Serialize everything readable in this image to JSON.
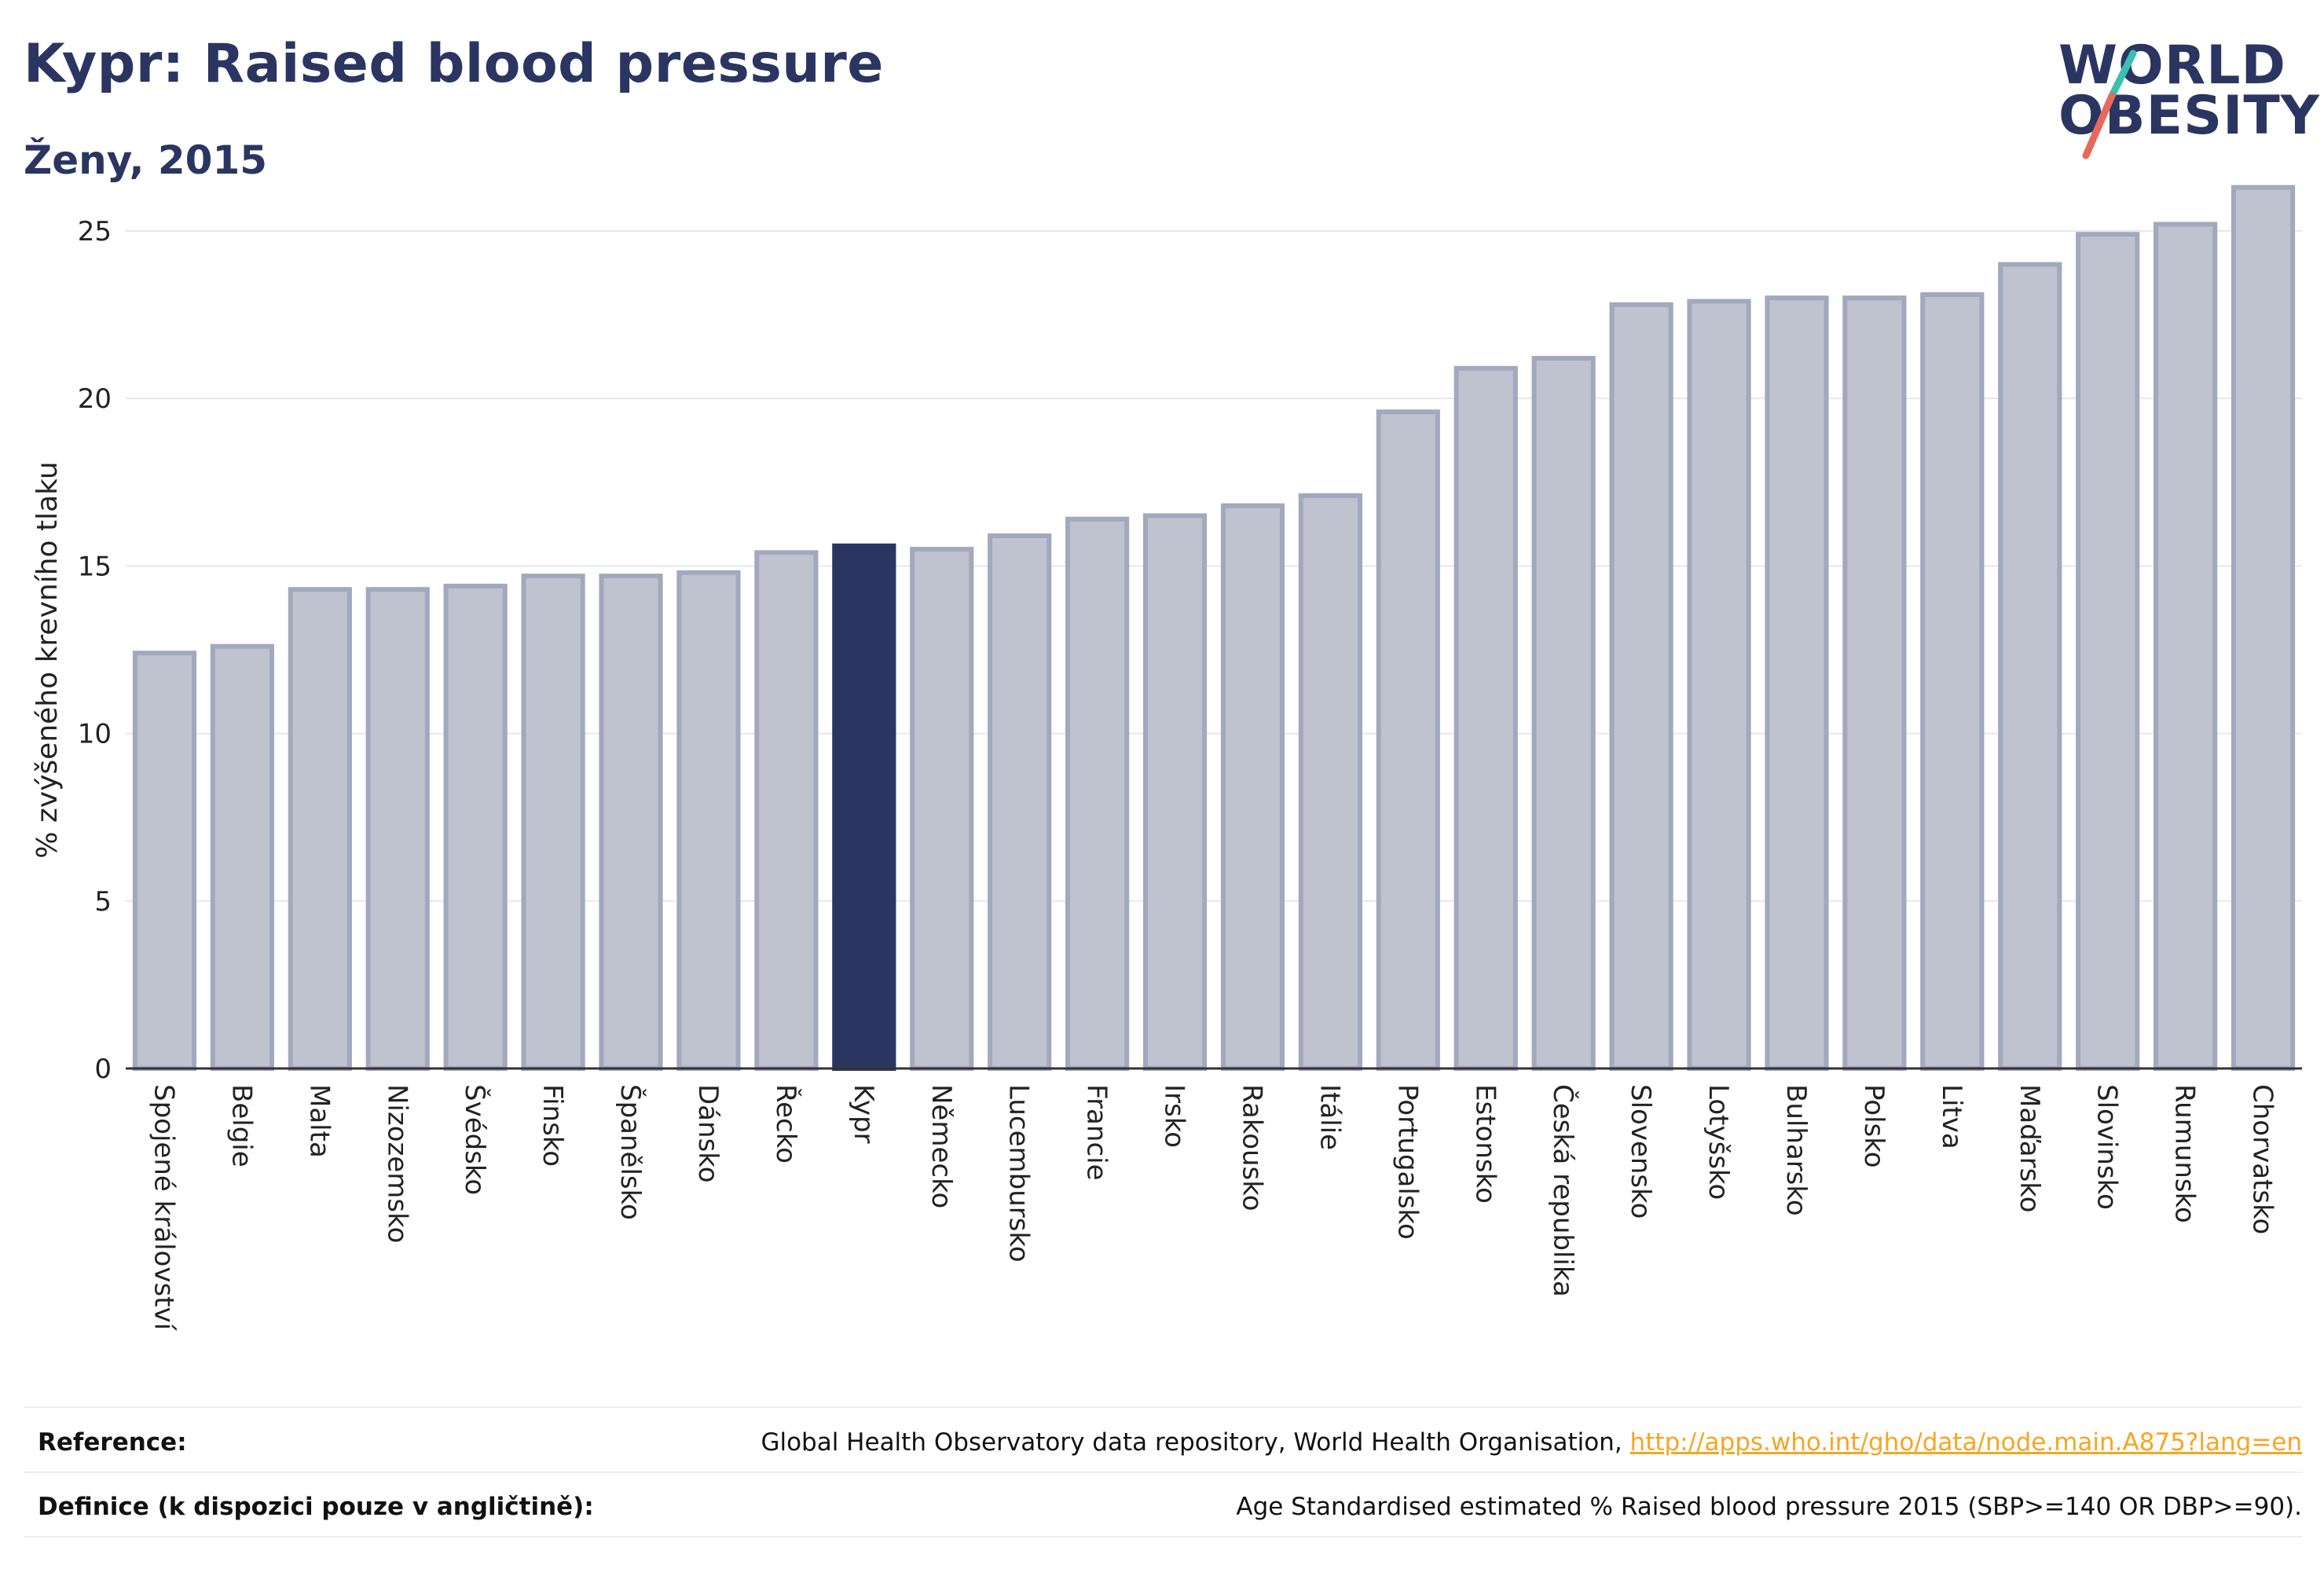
{
  "header": {
    "title": "Kypr: Raised blood pressure",
    "subtitle": "Ženy, 2015"
  },
  "logo": {
    "line1": "WORLD",
    "line2": "OBESITY",
    "accent_teal": "#3bbfb0",
    "accent_red": "#e8685a"
  },
  "colors": {
    "bar_fill": "#bfc3d0",
    "bar_stroke": "#a2a8bd",
    "highlight": "#2a3561",
    "grid": "#e6e8ee",
    "axis_text": "#222222"
  },
  "chart_data": {
    "type": "bar",
    "ylabel": "% zvýšeného krevního tlaku",
    "xlabel": "",
    "ylim": [
      0,
      26.5
    ],
    "yticks": [
      0,
      5,
      10,
      15,
      20,
      25
    ],
    "grid": true,
    "highlight": "Kypr",
    "categories": [
      "Spojené království",
      "Belgie",
      "Malta",
      "Nizozemsko",
      "Švédsko",
      "Finsko",
      "Španělsko",
      "Dánsko",
      "Řecko",
      "Kypr",
      "Německo",
      "Lucembursko",
      "Francie",
      "Irsko",
      "Rakousko",
      "Itálie",
      "Portugalsko",
      "Estonsko",
      "Česká republika",
      "Slovensko",
      "Lotyšsko",
      "Bulharsko",
      "Polsko",
      "Litva",
      "Maďarsko",
      "Slovinsko",
      "Rumunsko",
      "Chorvatsko"
    ],
    "values": [
      12.4,
      12.6,
      14.3,
      14.3,
      14.4,
      14.7,
      14.7,
      14.8,
      15.4,
      15.6,
      15.5,
      15.9,
      16.4,
      16.5,
      16.8,
      17.1,
      19.6,
      20.9,
      21.2,
      22.8,
      22.9,
      23.0,
      23.0,
      23.1,
      24.0,
      24.9,
      25.2,
      26.3
    ]
  },
  "footer": {
    "reference_label": "Reference:",
    "reference_text": "Global Health Observatory data repository, World Health Organisation, ",
    "reference_link": "http://apps.who.int/gho/data/node.main.A875?lang=en",
    "definition_label": "Definice (k dispozici pouze v angličtině):",
    "definition_text": "Age Standardised estimated % Raised blood pressure 2015 (SBP>=140 OR DBP>=90)."
  }
}
